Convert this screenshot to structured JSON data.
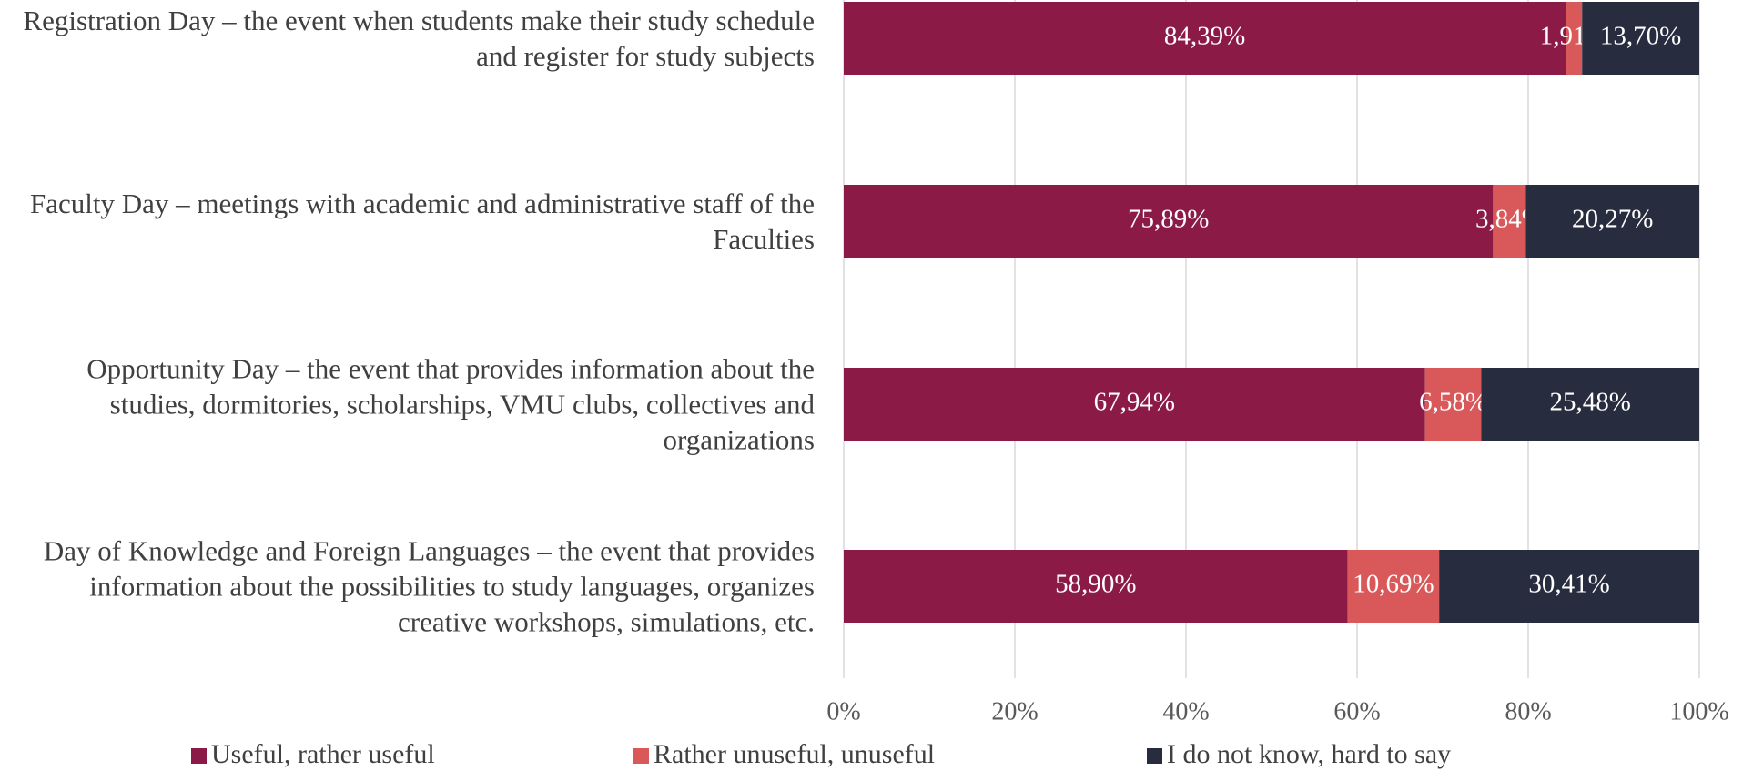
{
  "chart_data": {
    "type": "stacked_bar_horizontal",
    "categories": [
      "Registration Day – the event when students make their study schedule and register for study subjects",
      "Faculty Day – meetings with academic and administrative staff of the Faculties",
      "Opportunity Day – the event that provides information about the studies, dormitories, scholarships, VMU clubs, collectives and organizations",
      "Day of Knowledge and Foreign Languages – the event that provides information about the possibilities to study languages, organizes creative workshops, simulations, etc."
    ],
    "series": [
      {
        "name": "Useful, rather useful",
        "color": "#8b1a47",
        "values": [
          84.39,
          75.89,
          67.94,
          58.9
        ],
        "value_labels": [
          "84,39%",
          "75,89%",
          "67,94%",
          "58,90%"
        ]
      },
      {
        "name": "Rather unuseful, unuseful",
        "color": "#d9595b",
        "values": [
          1.91,
          3.84,
          6.58,
          10.69
        ],
        "value_labels": [
          "1,91%",
          "3,84%",
          "6,58%",
          "10,69%"
        ]
      },
      {
        "name": "I do not know, hard to say",
        "color": "#272d3f",
        "values": [
          13.7,
          20.27,
          25.48,
          30.41
        ],
        "value_labels": [
          "13,70%",
          "20,27%",
          "25,48%",
          "30,41%"
        ]
      }
    ],
    "xlim": [
      0,
      100
    ],
    "xticks": [
      {
        "value": 0,
        "label": "0%"
      },
      {
        "value": 20,
        "label": "20%"
      },
      {
        "value": 40,
        "label": "40%"
      },
      {
        "value": 60,
        "label": "60%"
      },
      {
        "value": 80,
        "label": "80%"
      },
      {
        "value": 100,
        "label": "100%"
      }
    ],
    "grid": true,
    "legend": "bottom"
  }
}
